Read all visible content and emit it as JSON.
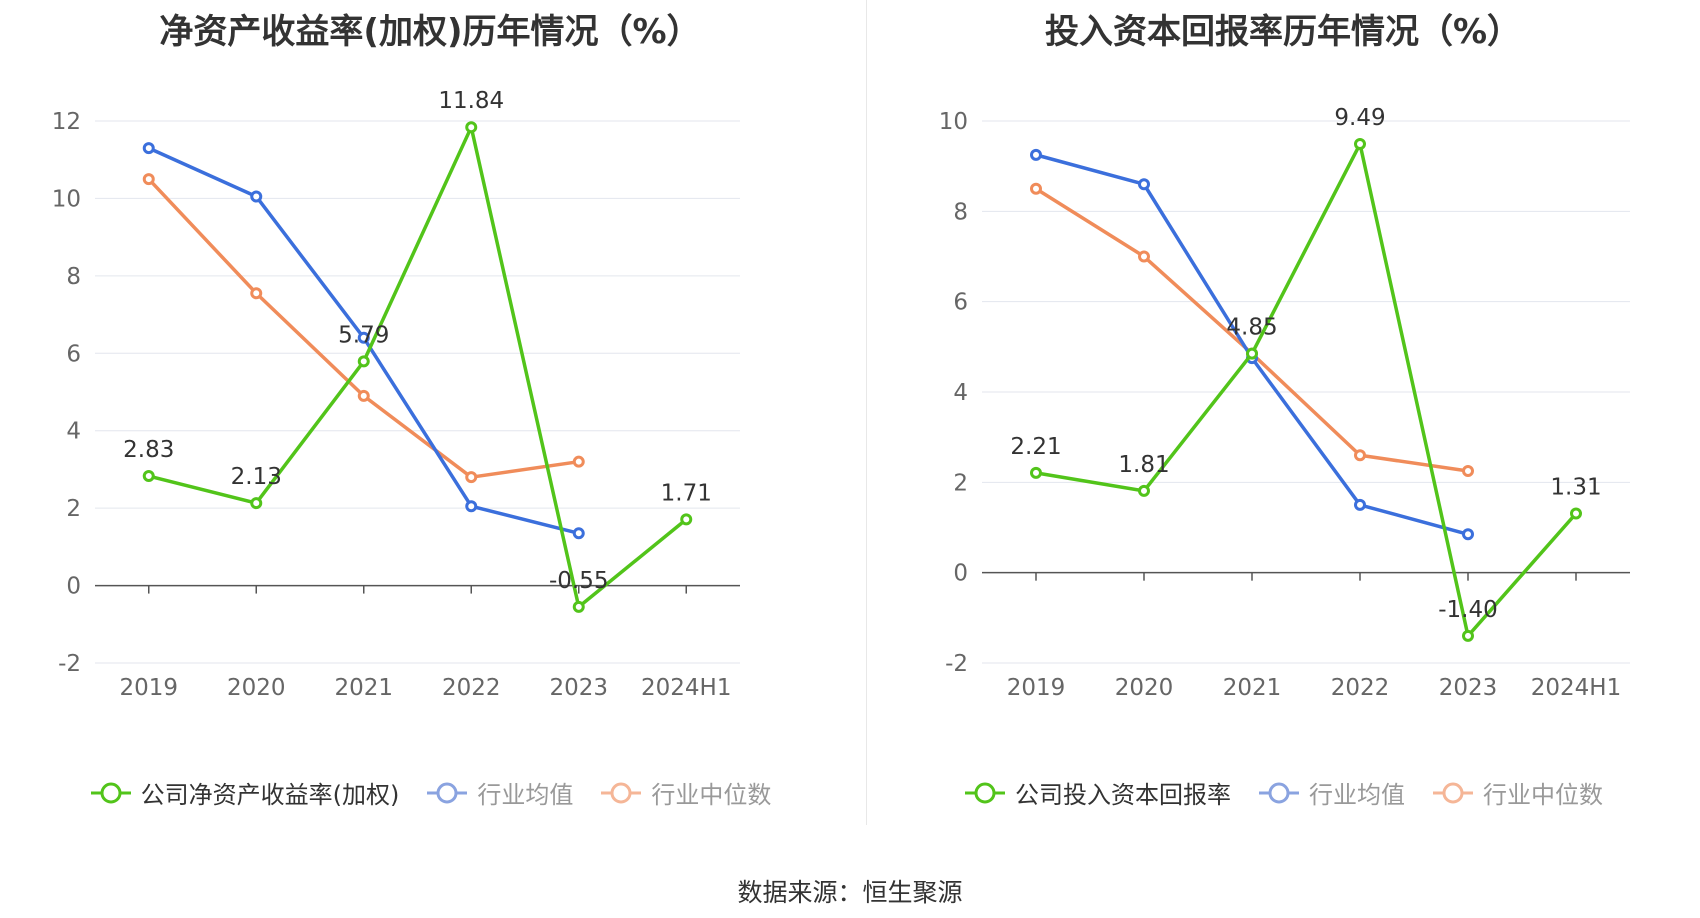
{
  "source": "数据来源：恒生聚源",
  "colors": {
    "company": "#52c41a",
    "average": "#3b6fdc",
    "median": "#f08c5a",
    "muted_legend": "#8aa3e0"
  },
  "chart_data": [
    {
      "type": "line",
      "title": "净资产收益率(加权)历年情况（%）",
      "categories": [
        "2019",
        "2020",
        "2021",
        "2022",
        "2023",
        "2024H1"
      ],
      "yticks": [
        -2,
        0,
        2,
        4,
        6,
        8,
        10,
        12
      ],
      "ylim": [
        -2,
        12
      ],
      "grid": true,
      "legend_position": "bottom",
      "series": [
        {
          "name": "公司净资产收益率(加权)",
          "color": "#52c41a",
          "values": [
            2.83,
            2.13,
            5.79,
            11.84,
            -0.55,
            1.71
          ],
          "labels": [
            "2.83",
            "2.13",
            "5.79",
            "11.84",
            "-0.55",
            "1.71"
          ]
        },
        {
          "name": "行业均值",
          "color": "#3b6fdc",
          "values": [
            11.3,
            10.05,
            6.4,
            2.05,
            1.35,
            null
          ]
        },
        {
          "name": "行业中位数",
          "color": "#f08c5a",
          "values": [
            10.5,
            7.55,
            4.9,
            2.8,
            3.2,
            null
          ]
        }
      ]
    },
    {
      "type": "line",
      "title": "投入资本回报率历年情况（%）",
      "categories": [
        "2019",
        "2020",
        "2021",
        "2022",
        "2023",
        "2024H1"
      ],
      "yticks": [
        -2,
        0,
        2,
        4,
        6,
        8,
        10
      ],
      "ylim": [
        -2,
        10
      ],
      "grid": true,
      "legend_position": "bottom",
      "series": [
        {
          "name": "公司投入资本回报率",
          "color": "#52c41a",
          "values": [
            2.21,
            1.81,
            4.85,
            9.49,
            -1.4,
            1.31
          ],
          "labels": [
            "2.21",
            "1.81",
            "4.85",
            "9.49",
            "-1.40",
            "1.31"
          ]
        },
        {
          "name": "行业均值",
          "color": "#3b6fdc",
          "values": [
            9.25,
            8.6,
            4.75,
            1.5,
            0.85,
            null
          ]
        },
        {
          "name": "行业中位数",
          "color": "#f08c5a",
          "values": [
            8.5,
            7.0,
            4.85,
            2.6,
            2.25,
            null
          ]
        }
      ]
    }
  ]
}
